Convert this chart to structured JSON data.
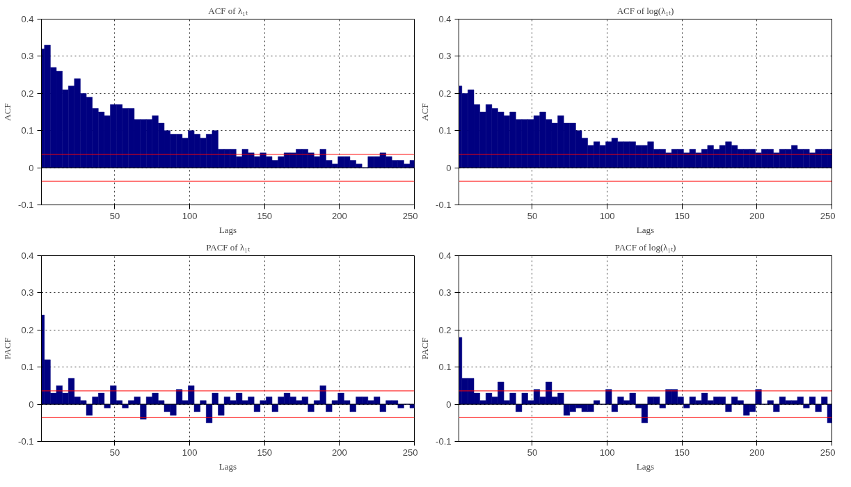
{
  "chart_data": [
    {
      "type": "bar",
      "title": "ACF of λ₁ₜ",
      "xlabel": "Lags",
      "ylabel": "ACF",
      "color": "#000080",
      "xlim": [
        1,
        250
      ],
      "ylim": [
        -0.1,
        0.4
      ],
      "xticks": [
        50,
        100,
        150,
        200,
        250
      ],
      "yticks": [
        -0.1,
        0,
        0.1,
        0.2,
        0.3,
        0.4
      ],
      "grid": true,
      "x": [
        1,
        5,
        9,
        13,
        17,
        21,
        25,
        29,
        33,
        37,
        41,
        45,
        49,
        53,
        57,
        61,
        65,
        69,
        73,
        77,
        81,
        85,
        89,
        93,
        97,
        101,
        105,
        109,
        113,
        117,
        121,
        125,
        129,
        133,
        137,
        141,
        145,
        149,
        153,
        157,
        161,
        165,
        169,
        173,
        177,
        181,
        185,
        189,
        193,
        197,
        201,
        205,
        209,
        213,
        217,
        221,
        225,
        229,
        233,
        237,
        241,
        245,
        249
      ],
      "values": [
        0.32,
        0.33,
        0.27,
        0.26,
        0.21,
        0.22,
        0.24,
        0.2,
        0.19,
        0.16,
        0.15,
        0.14,
        0.17,
        0.17,
        0.16,
        0.16,
        0.13,
        0.13,
        0.13,
        0.14,
        0.12,
        0.1,
        0.09,
        0.09,
        0.08,
        0.1,
        0.09,
        0.08,
        0.09,
        0.1,
        0.05,
        0.05,
        0.05,
        0.03,
        0.05,
        0.04,
        0.03,
        0.04,
        0.03,
        0.02,
        0.03,
        0.04,
        0.04,
        0.05,
        0.05,
        0.04,
        0.03,
        0.05,
        0.02,
        0.01,
        0.03,
        0.03,
        0.02,
        0.01,
        0.0,
        0.03,
        0.03,
        0.04,
        0.03,
        0.02,
        0.02,
        0.01,
        0.02
      ],
      "ref_lines": [
        {
          "axis": "y",
          "value": 0.036,
          "color": "#ff0000"
        },
        {
          "axis": "y",
          "value": -0.036,
          "color": "#ff0000"
        }
      ]
    },
    {
      "type": "bar",
      "title": "ACF of log(λ₁ₜ)",
      "xlabel": "Lags",
      "ylabel": "ACF",
      "color": "#000080",
      "xlim": [
        1,
        250
      ],
      "ylim": [
        -0.1,
        0.4
      ],
      "xticks": [
        50,
        100,
        150,
        200,
        250
      ],
      "yticks": [
        -0.1,
        0,
        0.1,
        0.2,
        0.3,
        0.4
      ],
      "grid": true,
      "x": [
        1,
        5,
        9,
        13,
        17,
        21,
        25,
        29,
        33,
        37,
        41,
        45,
        49,
        53,
        57,
        61,
        65,
        69,
        73,
        77,
        81,
        85,
        89,
        93,
        97,
        101,
        105,
        109,
        113,
        117,
        121,
        125,
        129,
        133,
        137,
        141,
        145,
        149,
        153,
        157,
        161,
        165,
        169,
        173,
        177,
        181,
        185,
        189,
        193,
        197,
        201,
        205,
        209,
        213,
        217,
        221,
        225,
        229,
        233,
        237,
        241,
        245,
        249
      ],
      "values": [
        0.22,
        0.2,
        0.21,
        0.17,
        0.15,
        0.17,
        0.16,
        0.15,
        0.14,
        0.15,
        0.13,
        0.13,
        0.13,
        0.14,
        0.15,
        0.13,
        0.12,
        0.14,
        0.12,
        0.12,
        0.1,
        0.08,
        0.06,
        0.07,
        0.06,
        0.07,
        0.08,
        0.07,
        0.07,
        0.07,
        0.06,
        0.06,
        0.07,
        0.05,
        0.05,
        0.04,
        0.05,
        0.05,
        0.04,
        0.05,
        0.04,
        0.05,
        0.06,
        0.05,
        0.06,
        0.07,
        0.06,
        0.05,
        0.05,
        0.05,
        0.04,
        0.05,
        0.05,
        0.04,
        0.05,
        0.05,
        0.06,
        0.05,
        0.05,
        0.04,
        0.05,
        0.05,
        0.05
      ],
      "ref_lines": [
        {
          "axis": "y",
          "value": 0.036,
          "color": "#ff0000"
        },
        {
          "axis": "y",
          "value": -0.036,
          "color": "#ff0000"
        }
      ]
    },
    {
      "type": "bar",
      "title": "PACF of λ₁ₜ",
      "xlabel": "Lags",
      "ylabel": "PACF",
      "color": "#000080",
      "xlim": [
        1,
        250
      ],
      "ylim": [
        -0.1,
        0.4
      ],
      "xticks": [
        50,
        100,
        150,
        200,
        250
      ],
      "yticks": [
        -0.1,
        0,
        0.1,
        0.2,
        0.3,
        0.4
      ],
      "grid": true,
      "x": [
        1,
        5,
        9,
        13,
        17,
        21,
        25,
        29,
        33,
        37,
        41,
        45,
        49,
        53,
        57,
        61,
        65,
        69,
        73,
        77,
        81,
        85,
        89,
        93,
        97,
        101,
        105,
        109,
        113,
        117,
        121,
        125,
        129,
        133,
        137,
        141,
        145,
        149,
        153,
        157,
        161,
        165,
        169,
        173,
        177,
        181,
        185,
        189,
        193,
        197,
        201,
        205,
        209,
        213,
        217,
        221,
        225,
        229,
        233,
        237,
        241,
        245,
        249
      ],
      "values": [
        0.24,
        0.12,
        0.03,
        0.05,
        0.03,
        0.07,
        0.02,
        0.01,
        -0.03,
        0.02,
        0.03,
        -0.01,
        0.05,
        0.01,
        -0.01,
        0.01,
        0.02,
        -0.04,
        0.02,
        0.03,
        0.01,
        -0.02,
        -0.03,
        0.04,
        0.01,
        0.05,
        -0.02,
        0.01,
        -0.05,
        0.03,
        -0.03,
        0.02,
        0.01,
        0.03,
        0.01,
        0.02,
        -0.02,
        0.01,
        0.02,
        -0.02,
        0.02,
        0.03,
        0.02,
        0.01,
        0.02,
        -0.02,
        0.01,
        0.05,
        -0.02,
        0.01,
        0.03,
        0.01,
        -0.02,
        0.02,
        0.02,
        0.01,
        0.02,
        -0.02,
        0.01,
        0.01,
        -0.01,
        0.0,
        -0.01
      ],
      "ref_lines": [
        {
          "axis": "y",
          "value": 0.036,
          "color": "#ff0000"
        },
        {
          "axis": "y",
          "value": -0.036,
          "color": "#ff0000"
        }
      ]
    },
    {
      "type": "bar",
      "title": "PACF of log(λ₁ₜ)",
      "xlabel": "Lags",
      "ylabel": "PACF",
      "color": "#000080",
      "xlim": [
        1,
        250
      ],
      "ylim": [
        -0.1,
        0.4
      ],
      "xticks": [
        50,
        100,
        150,
        200,
        250
      ],
      "yticks": [
        -0.1,
        0,
        0.1,
        0.2,
        0.3,
        0.4
      ],
      "grid": true,
      "x": [
        1,
        5,
        9,
        13,
        17,
        21,
        25,
        29,
        33,
        37,
        41,
        45,
        49,
        53,
        57,
        61,
        65,
        69,
        73,
        77,
        81,
        85,
        89,
        93,
        97,
        101,
        105,
        109,
        113,
        117,
        121,
        125,
        129,
        133,
        137,
        141,
        145,
        149,
        153,
        157,
        161,
        165,
        169,
        173,
        177,
        181,
        185,
        189,
        193,
        197,
        201,
        205,
        209,
        213,
        217,
        221,
        225,
        229,
        233,
        237,
        241,
        245,
        249
      ],
      "values": [
        0.18,
        0.07,
        0.07,
        0.03,
        0.01,
        0.03,
        0.02,
        0.06,
        0.01,
        0.03,
        -0.02,
        0.03,
        0.01,
        0.04,
        0.02,
        0.06,
        0.02,
        0.03,
        -0.03,
        -0.02,
        -0.01,
        -0.02,
        -0.02,
        0.01,
        0.0,
        0.04,
        -0.02,
        0.02,
        0.01,
        0.03,
        -0.01,
        -0.05,
        0.02,
        0.02,
        -0.01,
        0.04,
        0.04,
        0.02,
        -0.01,
        0.02,
        0.01,
        0.03,
        0.01,
        0.02,
        0.02,
        -0.02,
        0.02,
        0.01,
        -0.03,
        -0.02,
        0.04,
        0.0,
        0.01,
        -0.02,
        0.02,
        0.01,
        0.01,
        0.02,
        -0.01,
        0.02,
        -0.02,
        0.02,
        -0.05
      ],
      "ref_lines": [
        {
          "axis": "y",
          "value": 0.036,
          "color": "#ff0000"
        },
        {
          "axis": "y",
          "value": -0.036,
          "color": "#ff0000"
        }
      ]
    }
  ]
}
